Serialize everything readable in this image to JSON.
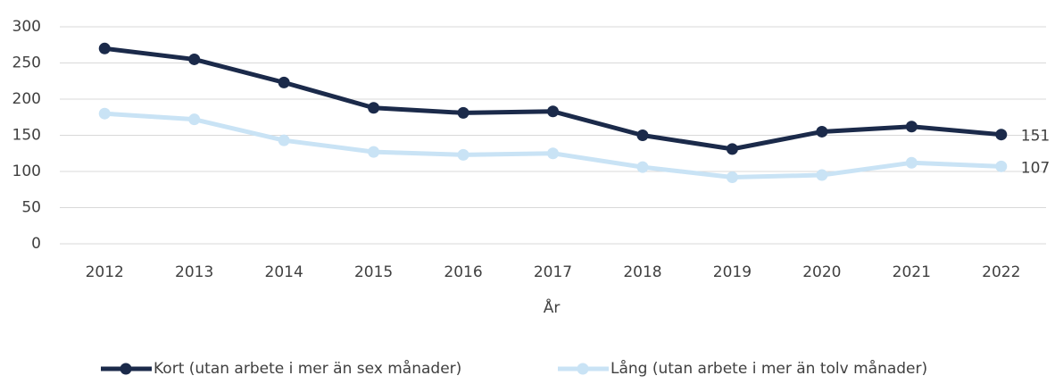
{
  "chart_data": {
    "type": "line",
    "xlabel": "År",
    "categories": [
      "2012",
      "2013",
      "2014",
      "2015",
      "2016",
      "2017",
      "2018",
      "2019",
      "2020",
      "2021",
      "2022"
    ],
    "series": [
      {
        "name": "Kort (utan arbete i mer än sex månader)",
        "color": "#1b2a4a",
        "values": [
          270,
          255,
          223,
          188,
          181,
          183,
          150,
          131,
          155,
          162,
          151
        ]
      },
      {
        "name": "Lång (utan arbete i mer än tolv månader)",
        "color": "#c9e3f5",
        "values": [
          180,
          172,
          143,
          127,
          123,
          125,
          106,
          92,
          95,
          112,
          107
        ]
      }
    ],
    "ylim": [
      0,
      300
    ],
    "yticks": [
      0,
      50,
      100,
      150,
      200,
      250,
      300
    ],
    "grid": true
  }
}
